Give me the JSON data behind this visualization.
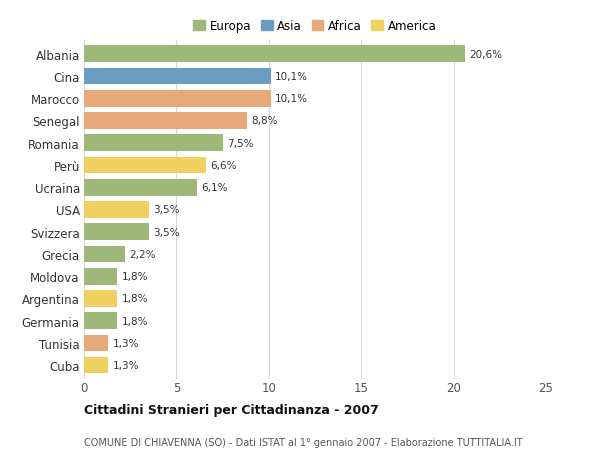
{
  "countries": [
    "Albania",
    "Cina",
    "Marocco",
    "Senegal",
    "Romania",
    "Perù",
    "Ucraina",
    "USA",
    "Svizzera",
    "Grecia",
    "Moldova",
    "Argentina",
    "Germania",
    "Tunisia",
    "Cuba"
  ],
  "values": [
    20.6,
    10.1,
    10.1,
    8.8,
    7.5,
    6.6,
    6.1,
    3.5,
    3.5,
    2.2,
    1.8,
    1.8,
    1.8,
    1.3,
    1.3
  ],
  "labels": [
    "20,6%",
    "10,1%",
    "10,1%",
    "8,8%",
    "7,5%",
    "6,6%",
    "6,1%",
    "3,5%",
    "3,5%",
    "2,2%",
    "1,8%",
    "1,8%",
    "1,8%",
    "1,3%",
    "1,3%"
  ],
  "continents": [
    "Europa",
    "Asia",
    "Africa",
    "Africa",
    "Europa",
    "America",
    "Europa",
    "America",
    "Europa",
    "Europa",
    "Europa",
    "America",
    "Europa",
    "Africa",
    "America"
  ],
  "colors": {
    "Europa": "#9EB87A",
    "Asia": "#6B9DC2",
    "Africa": "#E8A97A",
    "America": "#F0D060"
  },
  "legend_order": [
    "Europa",
    "Asia",
    "Africa",
    "America"
  ],
  "title": "Cittadini Stranieri per Cittadinanza - 2007",
  "subtitle": "COMUNE DI CHIAVENNA (SO) - Dati ISTAT al 1° gennaio 2007 - Elaborazione TUTTITALIA.IT",
  "xlim": [
    0,
    25
  ],
  "xticks": [
    0,
    5,
    10,
    15,
    20,
    25
  ],
  "background_color": "#ffffff",
  "grid_color": "#d8d8d8",
  "bar_height": 0.75
}
